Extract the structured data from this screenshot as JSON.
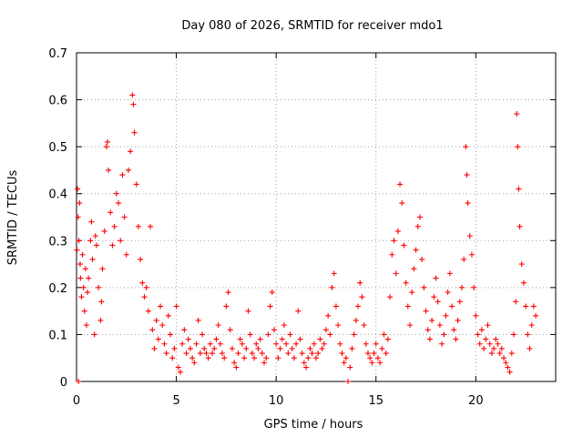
{
  "chart_data": {
    "type": "scatter",
    "title": "Day 080 of 2026, SRMTID for receiver mdo1",
    "xlabel": "GPS time / hours",
    "ylabel": "SRMTID / TECUs",
    "xlim": [
      0,
      24
    ],
    "ylim": [
      0,
      0.7
    ],
    "xticks": [
      0,
      5,
      10,
      15,
      20
    ],
    "yticks": [
      0,
      0.1,
      0.2,
      0.3,
      0.4,
      0.5,
      0.6,
      0.7
    ],
    "xtick_labels": [
      "0",
      "5",
      "10",
      "15",
      "20"
    ],
    "ytick_labels": [
      "0",
      "0.1",
      "0.2",
      "0.3",
      "0.4",
      "0.5",
      "0.6",
      "0.7"
    ],
    "grid": true,
    "marker": "+",
    "marker_color": "#ff0000",
    "series": [
      {
        "name": "SRMTID",
        "points": [
          [
            0.02,
            0.28
          ],
          [
            0.05,
            0.41
          ],
          [
            0.08,
            0.35
          ],
          [
            0.1,
            0.0
          ],
          [
            0.12,
            0.3
          ],
          [
            0.15,
            0.38
          ],
          [
            0.18,
            0.25
          ],
          [
            0.2,
            0.22
          ],
          [
            0.25,
            0.18
          ],
          [
            0.3,
            0.27
          ],
          [
            0.35,
            0.2
          ],
          [
            0.4,
            0.15
          ],
          [
            0.45,
            0.24
          ],
          [
            0.5,
            0.12
          ],
          [
            0.55,
            0.19
          ],
          [
            0.6,
            0.22
          ],
          [
            0.7,
            0.3
          ],
          [
            0.75,
            0.34
          ],
          [
            0.8,
            0.26
          ],
          [
            0.9,
            0.1
          ],
          [
            0.95,
            0.31
          ],
          [
            1.0,
            0.29
          ],
          [
            1.1,
            0.2
          ],
          [
            1.2,
            0.13
          ],
          [
            1.25,
            0.17
          ],
          [
            1.3,
            0.24
          ],
          [
            1.4,
            0.32
          ],
          [
            1.5,
            0.5
          ],
          [
            1.55,
            0.51
          ],
          [
            1.6,
            0.45
          ],
          [
            1.7,
            0.36
          ],
          [
            1.8,
            0.29
          ],
          [
            1.9,
            0.33
          ],
          [
            2.0,
            0.4
          ],
          [
            2.1,
            0.38
          ],
          [
            2.2,
            0.3
          ],
          [
            2.3,
            0.44
          ],
          [
            2.4,
            0.35
          ],
          [
            2.5,
            0.27
          ],
          [
            2.6,
            0.45
          ],
          [
            2.7,
            0.49
          ],
          [
            2.8,
            0.61
          ],
          [
            2.85,
            0.59
          ],
          [
            2.9,
            0.53
          ],
          [
            3.0,
            0.42
          ],
          [
            3.1,
            0.33
          ],
          [
            3.2,
            0.26
          ],
          [
            3.3,
            0.21
          ],
          [
            3.4,
            0.18
          ],
          [
            3.5,
            0.2
          ],
          [
            3.6,
            0.15
          ],
          [
            3.7,
            0.33
          ],
          [
            3.8,
            0.11
          ],
          [
            3.9,
            0.07
          ],
          [
            4.0,
            0.13
          ],
          [
            4.1,
            0.09
          ],
          [
            4.2,
            0.16
          ],
          [
            4.3,
            0.12
          ],
          [
            4.4,
            0.08
          ],
          [
            4.5,
            0.06
          ],
          [
            4.6,
            0.14
          ],
          [
            4.7,
            0.1
          ],
          [
            4.8,
            0.05
          ],
          [
            4.9,
            0.07
          ],
          [
            5.0,
            0.16
          ],
          [
            5.1,
            0.03
          ],
          [
            5.2,
            0.02
          ],
          [
            5.3,
            0.08
          ],
          [
            5.4,
            0.11
          ],
          [
            5.5,
            0.06
          ],
          [
            5.6,
            0.09
          ],
          [
            5.7,
            0.07
          ],
          [
            5.8,
            0.05
          ],
          [
            5.9,
            0.04
          ],
          [
            6.0,
            0.08
          ],
          [
            6.1,
            0.13
          ],
          [
            6.2,
            0.06
          ],
          [
            6.3,
            0.1
          ],
          [
            6.4,
            0.07
          ],
          [
            6.5,
            0.06
          ],
          [
            6.6,
            0.05
          ],
          [
            6.7,
            0.08
          ],
          [
            6.8,
            0.06
          ],
          [
            6.9,
            0.07
          ],
          [
            7.0,
            0.09
          ],
          [
            7.1,
            0.12
          ],
          [
            7.2,
            0.08
          ],
          [
            7.3,
            0.06
          ],
          [
            7.4,
            0.05
          ],
          [
            7.5,
            0.16
          ],
          [
            7.6,
            0.19
          ],
          [
            7.7,
            0.11
          ],
          [
            7.8,
            0.07
          ],
          [
            7.9,
            0.04
          ],
          [
            8.0,
            0.03
          ],
          [
            8.1,
            0.06
          ],
          [
            8.2,
            0.09
          ],
          [
            8.3,
            0.08
          ],
          [
            8.4,
            0.05
          ],
          [
            8.5,
            0.07
          ],
          [
            8.6,
            0.15
          ],
          [
            8.7,
            0.1
          ],
          [
            8.8,
            0.06
          ],
          [
            8.9,
            0.05
          ],
          [
            9.0,
            0.08
          ],
          [
            9.1,
            0.07
          ],
          [
            9.2,
            0.09
          ],
          [
            9.3,
            0.06
          ],
          [
            9.4,
            0.04
          ],
          [
            9.5,
            0.05
          ],
          [
            9.6,
            0.1
          ],
          [
            9.7,
            0.16
          ],
          [
            9.8,
            0.19
          ],
          [
            9.9,
            0.11
          ],
          [
            10.0,
            0.08
          ],
          [
            10.1,
            0.05
          ],
          [
            10.2,
            0.07
          ],
          [
            10.3,
            0.09
          ],
          [
            10.4,
            0.12
          ],
          [
            10.5,
            0.08
          ],
          [
            10.6,
            0.06
          ],
          [
            10.7,
            0.1
          ],
          [
            10.8,
            0.07
          ],
          [
            10.9,
            0.05
          ],
          [
            11.0,
            0.08
          ],
          [
            11.1,
            0.15
          ],
          [
            11.2,
            0.09
          ],
          [
            11.3,
            0.06
          ],
          [
            11.4,
            0.04
          ],
          [
            11.5,
            0.03
          ],
          [
            11.6,
            0.05
          ],
          [
            11.7,
            0.07
          ],
          [
            11.8,
            0.06
          ],
          [
            11.9,
            0.08
          ],
          [
            12.0,
            0.05
          ],
          [
            12.1,
            0.06
          ],
          [
            12.2,
            0.09
          ],
          [
            12.3,
            0.07
          ],
          [
            12.4,
            0.08
          ],
          [
            12.5,
            0.11
          ],
          [
            12.6,
            0.14
          ],
          [
            12.7,
            0.1
          ],
          [
            12.8,
            0.2
          ],
          [
            12.9,
            0.23
          ],
          [
            13.0,
            0.16
          ],
          [
            13.1,
            0.12
          ],
          [
            13.2,
            0.08
          ],
          [
            13.3,
            0.06
          ],
          [
            13.4,
            0.04
          ],
          [
            13.5,
            0.05
          ],
          [
            13.6,
            0.0
          ],
          [
            13.7,
            0.03
          ],
          [
            13.8,
            0.07
          ],
          [
            13.9,
            0.1
          ],
          [
            14.0,
            0.13
          ],
          [
            14.1,
            0.16
          ],
          [
            14.2,
            0.21
          ],
          [
            14.3,
            0.18
          ],
          [
            14.4,
            0.12
          ],
          [
            14.5,
            0.08
          ],
          [
            14.6,
            0.06
          ],
          [
            14.7,
            0.05
          ],
          [
            14.8,
            0.04
          ],
          [
            14.9,
            0.06
          ],
          [
            15.0,
            0.08
          ],
          [
            15.1,
            0.05
          ],
          [
            15.2,
            0.04
          ],
          [
            15.3,
            0.07
          ],
          [
            15.4,
            0.1
          ],
          [
            15.5,
            0.06
          ],
          [
            15.6,
            0.09
          ],
          [
            15.7,
            0.18
          ],
          [
            15.8,
            0.27
          ],
          [
            15.9,
            0.3
          ],
          [
            16.0,
            0.23
          ],
          [
            16.1,
            0.32
          ],
          [
            16.2,
            0.42
          ],
          [
            16.3,
            0.38
          ],
          [
            16.4,
            0.29
          ],
          [
            16.5,
            0.21
          ],
          [
            16.6,
            0.16
          ],
          [
            16.7,
            0.12
          ],
          [
            16.8,
            0.19
          ],
          [
            16.9,
            0.24
          ],
          [
            17.0,
            0.28
          ],
          [
            17.1,
            0.33
          ],
          [
            17.2,
            0.35
          ],
          [
            17.3,
            0.26
          ],
          [
            17.4,
            0.2
          ],
          [
            17.5,
            0.15
          ],
          [
            17.6,
            0.11
          ],
          [
            17.7,
            0.09
          ],
          [
            17.8,
            0.13
          ],
          [
            17.9,
            0.18
          ],
          [
            18.0,
            0.22
          ],
          [
            18.1,
            0.17
          ],
          [
            18.2,
            0.12
          ],
          [
            18.3,
            0.08
          ],
          [
            18.4,
            0.1
          ],
          [
            18.5,
            0.14
          ],
          [
            18.6,
            0.19
          ],
          [
            18.7,
            0.23
          ],
          [
            18.8,
            0.16
          ],
          [
            18.9,
            0.11
          ],
          [
            19.0,
            0.09
          ],
          [
            19.1,
            0.13
          ],
          [
            19.2,
            0.17
          ],
          [
            19.3,
            0.2
          ],
          [
            19.4,
            0.26
          ],
          [
            19.5,
            0.5
          ],
          [
            19.55,
            0.44
          ],
          [
            19.6,
            0.38
          ],
          [
            19.7,
            0.31
          ],
          [
            19.8,
            0.27
          ],
          [
            19.9,
            0.2
          ],
          [
            20.0,
            0.14
          ],
          [
            20.1,
            0.1
          ],
          [
            20.2,
            0.08
          ],
          [
            20.3,
            0.11
          ],
          [
            20.4,
            0.07
          ],
          [
            20.5,
            0.09
          ],
          [
            20.6,
            0.12
          ],
          [
            20.7,
            0.08
          ],
          [
            20.8,
            0.06
          ],
          [
            20.9,
            0.07
          ],
          [
            21.0,
            0.09
          ],
          [
            21.1,
            0.08
          ],
          [
            21.2,
            0.06
          ],
          [
            21.3,
            0.07
          ],
          [
            21.4,
            0.05
          ],
          [
            21.5,
            0.04
          ],
          [
            21.6,
            0.03
          ],
          [
            21.7,
            0.02
          ],
          [
            21.8,
            0.06
          ],
          [
            21.9,
            0.1
          ],
          [
            22.0,
            0.17
          ],
          [
            22.05,
            0.57
          ],
          [
            22.1,
            0.5
          ],
          [
            22.15,
            0.41
          ],
          [
            22.2,
            0.33
          ],
          [
            22.3,
            0.25
          ],
          [
            22.4,
            0.21
          ],
          [
            22.5,
            0.16
          ],
          [
            22.6,
            0.1
          ],
          [
            22.7,
            0.07
          ],
          [
            22.8,
            0.12
          ],
          [
            22.9,
            0.16
          ],
          [
            23.0,
            0.14
          ]
        ]
      }
    ]
  }
}
